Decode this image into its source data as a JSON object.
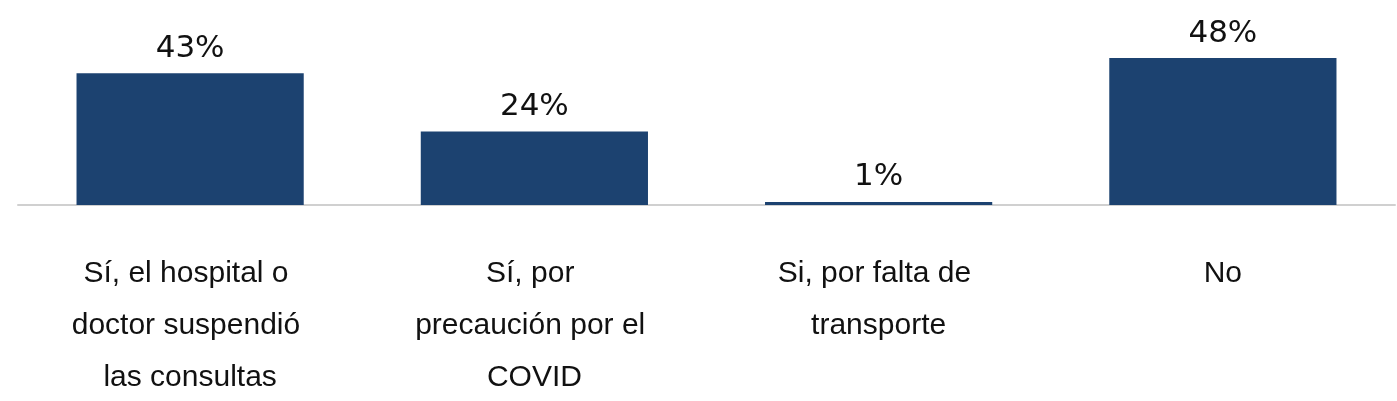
{
  "chart_data": {
    "type": "bar",
    "categories": [
      "Sí, el hospital o doctor suspendió las consultas",
      "Sí, por precaución por el COVID",
      "Si, por falta de transporte",
      "No"
    ],
    "values": [
      43,
      24,
      1,
      48
    ],
    "value_labels": [
      "43%",
      "24%",
      "1%",
      "48%"
    ],
    "color": "#1c4270"
  }
}
